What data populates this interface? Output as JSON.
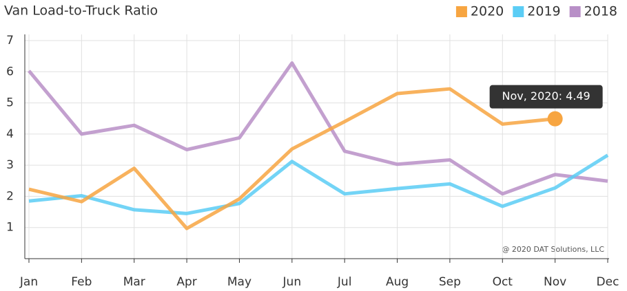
{
  "chart_data": {
    "type": "line",
    "title": "Van Load-to-Truck Ratio",
    "categories": [
      "Jan",
      "Feb",
      "Mar",
      "Apr",
      "May",
      "Jun",
      "Jul",
      "Aug",
      "Sep",
      "Oct",
      "Nov",
      "Dec"
    ],
    "series": [
      {
        "name": "2020",
        "color": "#f7a541",
        "values": [
          2.23,
          1.83,
          2.9,
          0.97,
          1.92,
          3.52,
          4.4,
          5.3,
          5.45,
          4.32,
          4.49,
          null
        ]
      },
      {
        "name": "2019",
        "color": "#5bcdf5",
        "values": [
          1.85,
          2.02,
          1.57,
          1.45,
          1.77,
          3.12,
          2.08,
          2.25,
          2.4,
          1.68,
          2.27,
          3.32
        ]
      },
      {
        "name": "2018",
        "color": "#b88fc7",
        "values": [
          6.03,
          4.0,
          4.28,
          3.5,
          3.88,
          6.28,
          3.45,
          3.03,
          3.17,
          2.08,
          2.7,
          2.49
        ]
      }
    ],
    "ylim": [
      0,
      7
    ],
    "yticks": [
      1,
      2,
      3,
      4,
      5,
      6,
      7
    ],
    "grid": true,
    "tooltip": "Nov, 2020: 4.49",
    "credit": "@ 2020 DAT Solutions, LLC"
  }
}
